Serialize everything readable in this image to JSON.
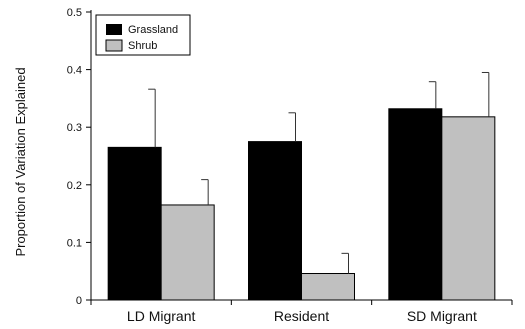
{
  "chart_data": {
    "type": "bar",
    "categories": [
      "LD Migrant",
      "Resident",
      "SD Migrant"
    ],
    "series": [
      {
        "name": "Grassland",
        "values": [
          0.265,
          0.275,
          0.332
        ],
        "error": [
          0.101,
          0.05,
          0.047
        ],
        "color": "#000000"
      },
      {
        "name": "Shrub",
        "values": [
          0.165,
          0.046,
          0.318
        ],
        "error": [
          0.044,
          0.035,
          0.077
        ],
        "color": "#c0c0c0"
      }
    ],
    "ylabel": "Proportion of Variation Explained",
    "ylim": [
      0,
      0.5
    ],
    "yticks": [
      "0",
      "0.1",
      "0.2",
      "0.3",
      "0.4",
      "0.5"
    ],
    "legend_position": "top-left",
    "grid": false
  }
}
